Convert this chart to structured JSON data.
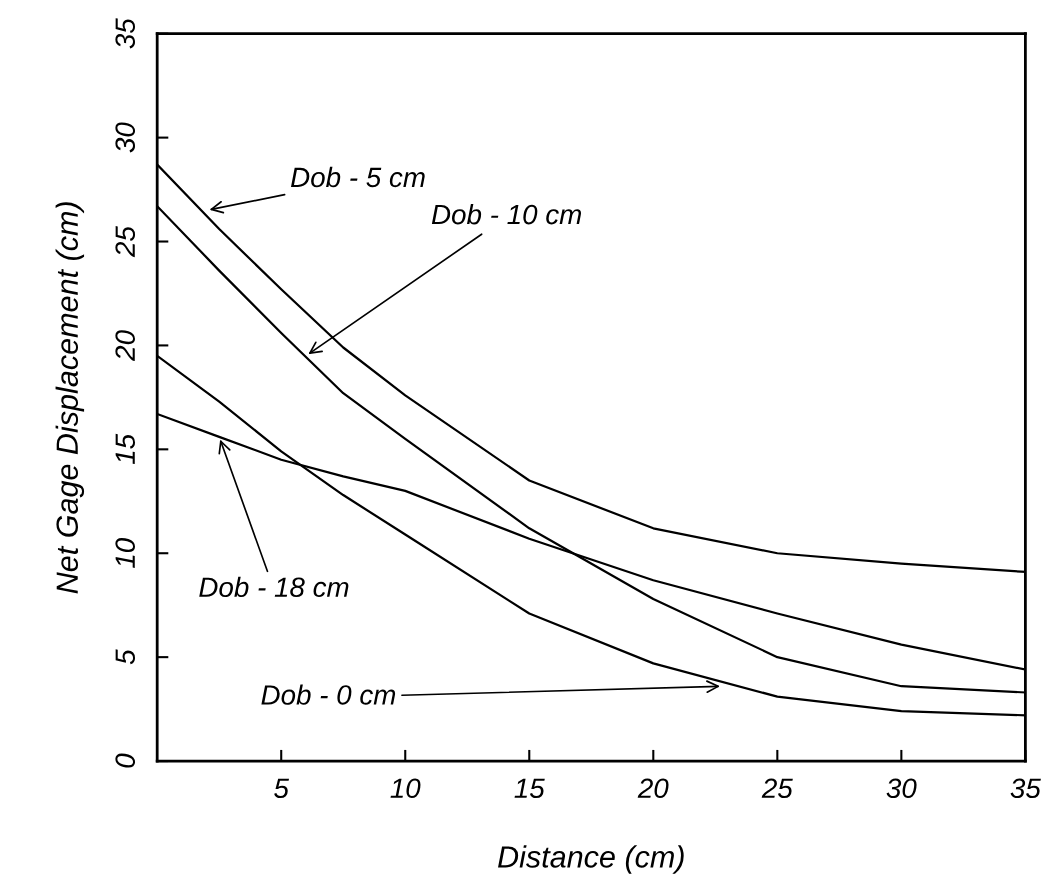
{
  "chart_data": {
    "type": "line",
    "xlabel": "Distance (cm)",
    "ylabel": "Net Gage Displacement (cm)",
    "x": [
      0,
      2.5,
      5,
      7.5,
      10,
      15,
      20,
      25,
      30,
      35
    ],
    "xlim": [
      0,
      35
    ],
    "xticks": [
      5,
      10,
      15,
      20,
      25,
      30,
      35
    ],
    "ylim": [
      0,
      35
    ],
    "yticks": [
      0,
      5,
      10,
      15,
      20,
      25,
      30,
      35
    ],
    "series": [
      {
        "color": "#000000",
        "values": [
          28.7,
          25.6,
          22.7,
          19.9,
          17.6,
          13.5,
          11.2,
          10.0,
          9.5,
          9.1
        ]
      },
      {
        "color": "#000000",
        "values": [
          26.7,
          23.6,
          20.6,
          17.7,
          15.5,
          11.2,
          7.8,
          5.0,
          3.6,
          3.3
        ]
      },
      {
        "color": "#000000",
        "values": [
          16.7,
          15.6,
          14.5,
          13.7,
          13.0,
          10.7,
          8.7,
          7.1,
          5.6,
          4.4
        ]
      },
      {
        "color": "#000000",
        "values": [
          19.5,
          17.3,
          14.9,
          12.8,
          10.9,
          7.1,
          4.7,
          3.1,
          2.4,
          2.2
        ]
      }
    ],
    "annotations": [
      {
        "text": "Dob - 5 cm",
        "x": 2.0,
        "y": 26.5
      },
      {
        "text": "Dob - 10 cm",
        "x": 6.0,
        "y": 19.5
      },
      {
        "text": "Dob - 18 cm",
        "x": 2.5,
        "y": 15.6
      },
      {
        "text": "Dob - 0 cm",
        "x": 22.8,
        "y": 3.6
      }
    ],
    "grid": false,
    "legend": false,
    "marker": "none",
    "line_style": "solid"
  }
}
